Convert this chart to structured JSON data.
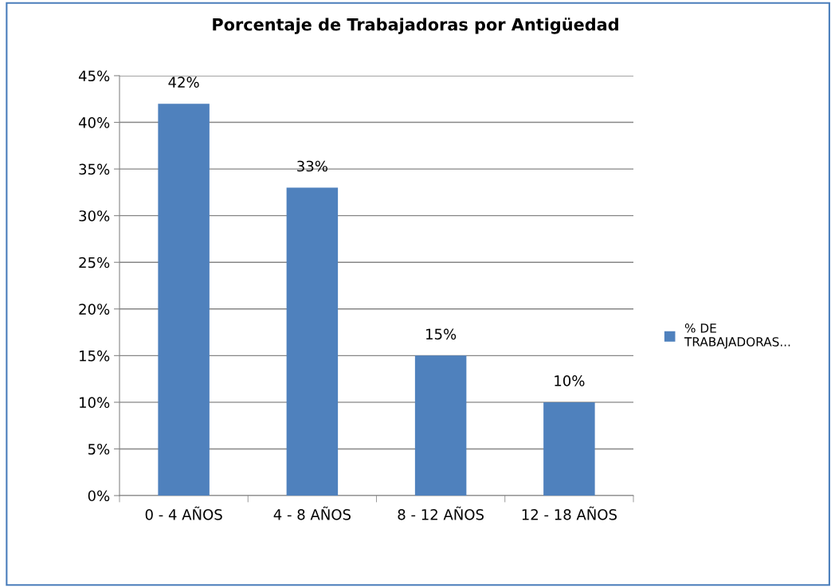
{
  "chart_data": {
    "type": "bar",
    "title": "Porcentaje de Trabajadoras por Antigüedad",
    "categories": [
      "0 - 4 AÑOS",
      "4 - 8 AÑOS",
      "8 - 12 AÑOS",
      "12 - 18 AÑOS"
    ],
    "series": [
      {
        "name": "% DE TRABAJADORAS...",
        "color": "#4f81bd",
        "values": [
          42,
          33,
          15,
          10
        ],
        "value_labels": [
          "42%",
          "33%",
          "15%",
          "10%"
        ]
      }
    ],
    "ylim": [
      0,
      45
    ],
    "yticks": [
      {
        "value": 0,
        "label": "0%"
      },
      {
        "value": 5,
        "label": "5%"
      },
      {
        "value": 10,
        "label": "10%"
      },
      {
        "value": 15,
        "label": "15%"
      },
      {
        "value": 20,
        "label": "20%"
      },
      {
        "value": 25,
        "label": "25%"
      },
      {
        "value": 30,
        "label": "30%"
      },
      {
        "value": 35,
        "label": "35%"
      },
      {
        "value": 40,
        "label": "40%"
      },
      {
        "value": 45,
        "label": "45%"
      }
    ],
    "grid": "y",
    "legend": "right"
  }
}
